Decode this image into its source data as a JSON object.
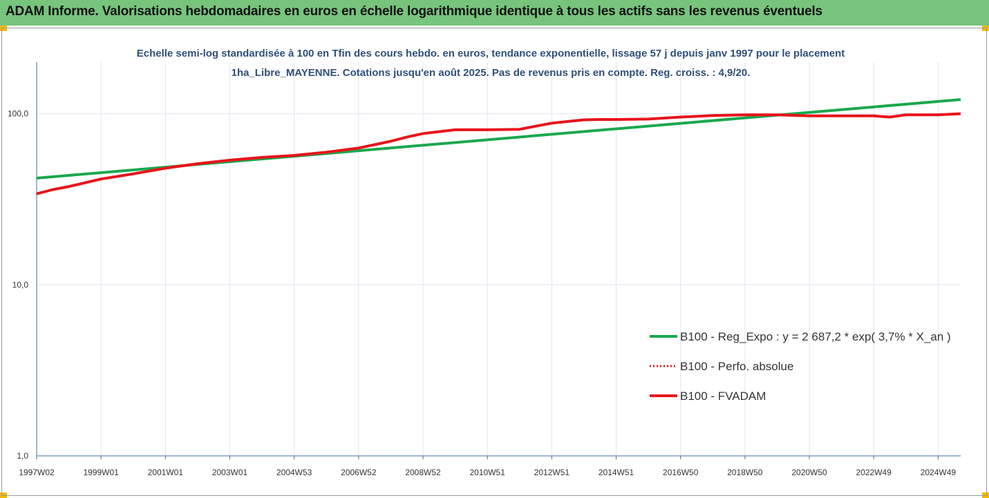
{
  "header": {
    "title": "ADAM Informe. Valorisations hebdomadaires en euros en échelle logarithmique identique à tous les actifs sans les revenus éventuels"
  },
  "colors": {
    "banner": "#77c47d",
    "trend": "#1aa84e",
    "perf": "#e8141b",
    "fvadam": "#e8141b",
    "accent": "#f0b800"
  },
  "chart_data": {
    "type": "line",
    "title": "Echelle semi-log standardisée à 100 en Tfin des cours hebdo. en euros, tendance exponentielle, lissage 57 j depuis janv 1997 pour le placement 1ha_Libre_MAYENNE.  Cotations jusqu'en août 2025. Pas de revenus pris en compte. Reg. croiss. : 4,9/20.",
    "yscale": "log",
    "ylim": [
      1,
      200
    ],
    "yticks": [
      1,
      10,
      100
    ],
    "ytick_labels": [
      "1,0",
      "10,0",
      "100,0"
    ],
    "xlim": [
      1997.0,
      2025.7
    ],
    "xticks": [
      1997.0,
      1999.0,
      2001.0,
      2003.0,
      2005.0,
      2007.0,
      2009.0,
      2011.0,
      2013.0,
      2015.0,
      2017.0,
      2019.0,
      2021.0,
      2023.0,
      2025.0
    ],
    "xtick_labels": [
      "1997W02",
      "1999W01",
      "2001W01",
      "2003W01",
      "2004W53",
      "2006W52",
      "2008W52",
      "2010W51",
      "2012W51",
      "2014W51",
      "2016W50",
      "2018W50",
      "2020W50",
      "2022W49",
      "2024W49"
    ],
    "grid": true,
    "legend_position": "right",
    "series": [
      {
        "name": "B100 - Reg_Expo : y = 2 687,2 * exp( 3,7% *  X_an )",
        "style": "solid",
        "x": [
          1997.0,
          2025.7
        ],
        "values": [
          42.0,
          121.0
        ]
      },
      {
        "name": "B100 - Perfo. absolue",
        "style": "dotted",
        "x": [
          1997.0,
          1997.5,
          1998.0,
          1999.0,
          2000.0,
          2001.0,
          2002.0,
          2003.0,
          2004.0,
          2005.0,
          2006.0,
          2007.0,
          2008.0,
          2008.5,
          2009.0,
          2009.5,
          2010.0,
          2011.0,
          2012.0,
          2012.5,
          2013.0,
          2014.0,
          2014.5,
          2015.0,
          2016.0,
          2017.0,
          2018.0,
          2019.0,
          2020.0,
          2021.0,
          2022.0,
          2023.0,
          2023.5,
          2024.0,
          2025.0,
          2025.7
        ],
        "values": [
          34.0,
          36.0,
          37.5,
          41.5,
          44.5,
          48.0,
          51.0,
          53.5,
          55.5,
          57.0,
          59.5,
          63.0,
          69.0,
          73.0,
          76.5,
          78.5,
          80.5,
          80.5,
          81.0,
          84.5,
          88.0,
          92.0,
          92.5,
          92.5,
          93.0,
          95.5,
          97.5,
          98.5,
          98.5,
          97.0,
          97.0,
          97.0,
          95.5,
          98.5,
          98.5,
          100.0
        ]
      },
      {
        "name": "B100 - FVADAM",
        "style": "solid",
        "x": [
          1997.0,
          1997.5,
          1998.0,
          1999.0,
          2000.0,
          2001.0,
          2002.0,
          2003.0,
          2004.0,
          2005.0,
          2006.0,
          2007.0,
          2008.0,
          2008.5,
          2009.0,
          2009.5,
          2010.0,
          2011.0,
          2012.0,
          2012.5,
          2013.0,
          2014.0,
          2014.5,
          2015.0,
          2016.0,
          2017.0,
          2018.0,
          2019.0,
          2020.0,
          2021.0,
          2022.0,
          2023.0,
          2023.5,
          2024.0,
          2025.0,
          2025.7
        ],
        "values": [
          34.0,
          36.0,
          37.5,
          41.5,
          44.5,
          48.0,
          51.0,
          53.5,
          55.5,
          57.0,
          59.5,
          63.0,
          69.0,
          73.0,
          76.5,
          78.5,
          80.5,
          80.5,
          81.0,
          84.5,
          88.0,
          92.0,
          92.5,
          92.5,
          93.0,
          95.5,
          97.5,
          98.5,
          98.5,
          97.0,
          97.0,
          97.0,
          95.5,
          98.5,
          98.5,
          100.0
        ]
      }
    ]
  }
}
